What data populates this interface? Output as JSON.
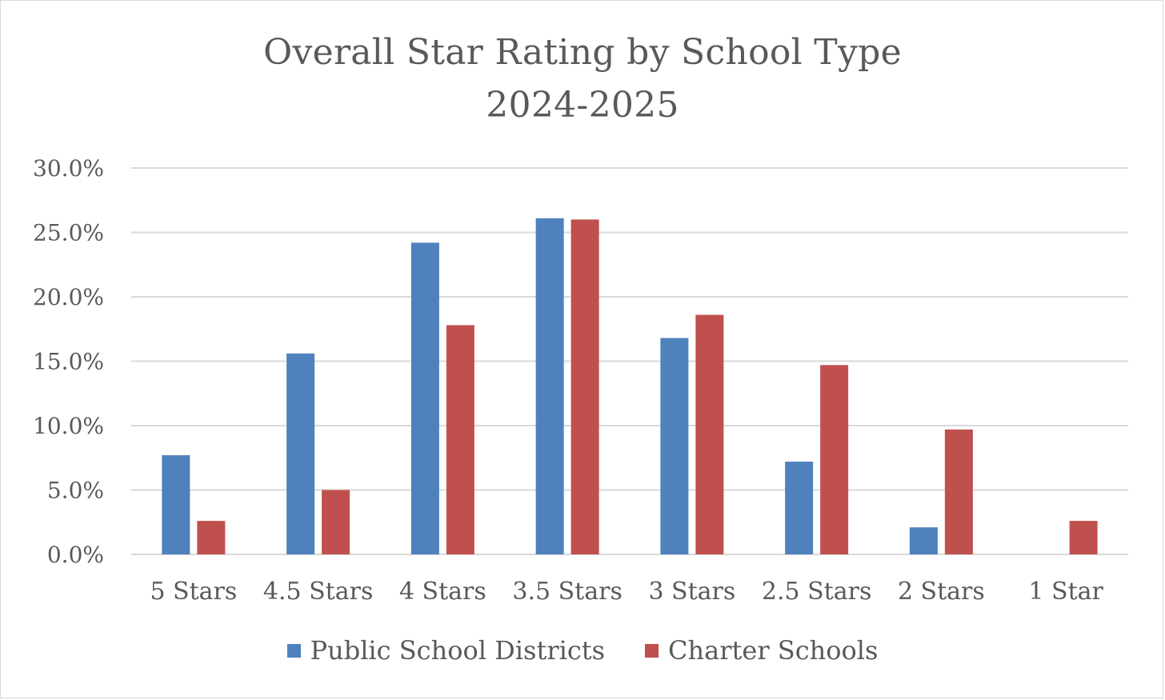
{
  "chart_data": {
    "type": "bar",
    "title": "Overall Star Rating by School Type",
    "subtitle": "2024-2025",
    "xlabel": "",
    "ylabel": "",
    "ylim": [
      0,
      30
    ],
    "yticks": [
      "0.0%",
      "5.0%",
      "10.0%",
      "15.0%",
      "20.0%",
      "25.0%",
      "30.0%"
    ],
    "ytick_values": [
      0,
      5,
      10,
      15,
      20,
      25,
      30
    ],
    "grid": true,
    "legend_position": "bottom",
    "categories": [
      "5 Stars",
      "4.5 Stars",
      "4 Stars",
      "3.5 Stars",
      "3 Stars",
      "2.5 Stars",
      "2 Stars",
      "1 Star"
    ],
    "series": [
      {
        "name": "Public School Districts",
        "color": "#4f81bd",
        "values": [
          7.7,
          15.6,
          24.2,
          26.1,
          16.8,
          7.2,
          2.1,
          0.0
        ]
      },
      {
        "name": "Charter Schools",
        "color": "#c0504d",
        "values": [
          2.6,
          5.0,
          17.8,
          26.0,
          18.6,
          14.7,
          9.7,
          2.6
        ]
      }
    ]
  }
}
